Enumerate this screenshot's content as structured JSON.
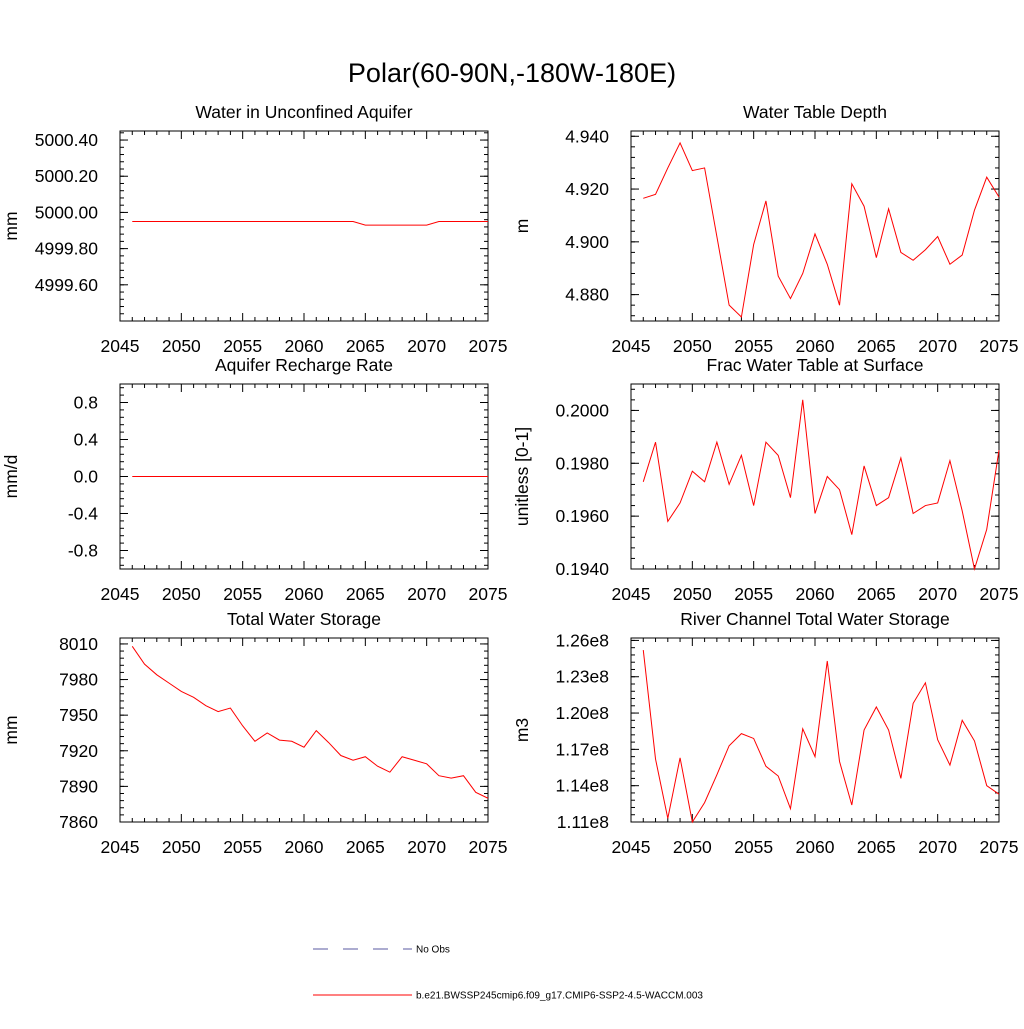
{
  "page": {
    "title": "Polar(60-90N,-180W-180E)"
  },
  "colors": {
    "series": "#ff0000",
    "obs": "#5a5aa0",
    "axis": "#000000"
  },
  "legend": {
    "entries": [
      {
        "label": "No Obs",
        "style": "dashed",
        "color": "#5a5aa0"
      },
      {
        "label": "b.e21.BWSSP245cmip6.f09_g17.CMIP6-SSP2-4.5-WACCM.003",
        "style": "solid",
        "color": "#ff0000"
      }
    ]
  },
  "chart_data": [
    {
      "type": "line",
      "title": "Water in Unconfined Aquifer",
      "xlabel": "",
      "ylabel": "mm",
      "xlim": [
        2045,
        2075
      ],
      "ylim": [
        4999.4,
        5000.45
      ],
      "xticks": [
        2045,
        2050,
        2055,
        2060,
        2065,
        2070,
        2075
      ],
      "xtick_labels": [
        "2045",
        "2050",
        "2055",
        "2060",
        "2065",
        "2070",
        "2075"
      ],
      "yticks": [
        4999.6,
        4999.8,
        5000.0,
        5000.2,
        5000.4
      ],
      "ytick_labels": [
        "4999.60",
        "4999.80",
        "5000.00",
        "5000.20",
        "5000.40"
      ],
      "series": [
        {
          "name": "b.e21.BWSSP245cmip6.f09_g17.CMIP6-SSP2-4.5-WACCM.003",
          "x": [
            2046,
            2047,
            2048,
            2049,
            2050,
            2051,
            2052,
            2053,
            2054,
            2055,
            2056,
            2057,
            2058,
            2059,
            2060,
            2061,
            2062,
            2063,
            2064,
            2065,
            2066,
            2067,
            2068,
            2069,
            2070,
            2071,
            2072,
            2073,
            2074,
            2075
          ],
          "values": [
            4999.95,
            4999.95,
            4999.95,
            4999.95,
            4999.95,
            4999.95,
            4999.95,
            4999.95,
            4999.95,
            4999.95,
            4999.95,
            4999.95,
            4999.95,
            4999.95,
            4999.95,
            4999.95,
            4999.95,
            4999.95,
            4999.95,
            4999.93,
            4999.93,
            4999.93,
            4999.93,
            4999.93,
            4999.93,
            4999.95,
            4999.95,
            4999.95,
            4999.95,
            4999.95
          ]
        }
      ]
    },
    {
      "type": "line",
      "title": "Water Table Depth",
      "xlabel": "",
      "ylabel": "m",
      "xlim": [
        2045,
        2075
      ],
      "ylim": [
        4.87,
        4.942
      ],
      "xticks": [
        2045,
        2050,
        2055,
        2060,
        2065,
        2070,
        2075
      ],
      "xtick_labels": [
        "2045",
        "2050",
        "2055",
        "2060",
        "2065",
        "2070",
        "2075"
      ],
      "yticks": [
        4.88,
        4.9,
        4.92,
        4.94
      ],
      "ytick_labels": [
        "4.880",
        "4.900",
        "4.920",
        "4.940"
      ],
      "series": [
        {
          "name": "b.e21.BWSSP245cmip6.f09_g17.CMIP6-SSP2-4.5-WACCM.003",
          "x": [
            2046,
            2047,
            2048,
            2049,
            2050,
            2051,
            2052,
            2053,
            2054,
            2055,
            2056,
            2057,
            2058,
            2059,
            2060,
            2061,
            2062,
            2063,
            2064,
            2065,
            2066,
            2067,
            2068,
            2069,
            2070,
            2071,
            2072,
            2073,
            2074,
            2075
          ],
          "values": [
            4.9165,
            4.918,
            4.928,
            4.9375,
            4.927,
            4.928,
            4.902,
            4.876,
            4.8715,
            4.899,
            4.9155,
            4.887,
            4.8785,
            4.888,
            4.903,
            4.8915,
            4.876,
            4.922,
            4.9135,
            4.894,
            4.9125,
            4.896,
            4.893,
            4.897,
            4.902,
            4.8915,
            4.895,
            4.912,
            4.9245,
            4.917
          ]
        }
      ]
    },
    {
      "type": "line",
      "title": "Aquifer Recharge Rate",
      "xlabel": "",
      "ylabel": "mm/d",
      "xlim": [
        2045,
        2075
      ],
      "ylim": [
        -1.0,
        1.0
      ],
      "xticks": [
        2045,
        2050,
        2055,
        2060,
        2065,
        2070,
        2075
      ],
      "xtick_labels": [
        "2045",
        "2050",
        "2055",
        "2060",
        "2065",
        "2070",
        "2075"
      ],
      "yticks": [
        -0.8,
        -0.4,
        0.0,
        0.4,
        0.8
      ],
      "ytick_labels": [
        "-0.8",
        "-0.4",
        "0.0",
        "0.4",
        "0.8"
      ],
      "series": [
        {
          "name": "b.e21.BWSSP245cmip6.f09_g17.CMIP6-SSP2-4.5-WACCM.003",
          "x": [
            2046,
            2047,
            2048,
            2049,
            2050,
            2051,
            2052,
            2053,
            2054,
            2055,
            2056,
            2057,
            2058,
            2059,
            2060,
            2061,
            2062,
            2063,
            2064,
            2065,
            2066,
            2067,
            2068,
            2069,
            2070,
            2071,
            2072,
            2073,
            2074,
            2075
          ],
          "values": [
            0,
            0,
            0,
            0,
            0,
            0,
            0,
            0,
            0,
            0,
            0,
            0,
            0,
            0,
            0,
            0,
            0,
            0,
            0,
            0,
            0,
            0,
            0,
            0,
            0,
            0,
            0,
            0,
            0,
            0
          ]
        }
      ]
    },
    {
      "type": "line",
      "title": "Frac Water Table at Surface",
      "xlabel": "",
      "ylabel": "unitless [0-1]",
      "xlim": [
        2045,
        2075
      ],
      "ylim": [
        0.194,
        0.201
      ],
      "xticks": [
        2045,
        2050,
        2055,
        2060,
        2065,
        2070,
        2075
      ],
      "xtick_labels": [
        "2045",
        "2050",
        "2055",
        "2060",
        "2065",
        "2070",
        "2075"
      ],
      "yticks": [
        0.194,
        0.196,
        0.198,
        0.2
      ],
      "ytick_labels": [
        "0.1940",
        "0.1960",
        "0.1980",
        "0.2000"
      ],
      "series": [
        {
          "name": "b.e21.BWSSP245cmip6.f09_g17.CMIP6-SSP2-4.5-WACCM.003",
          "x": [
            2046,
            2047,
            2048,
            2049,
            2050,
            2051,
            2052,
            2053,
            2054,
            2055,
            2056,
            2057,
            2058,
            2059,
            2060,
            2061,
            2062,
            2063,
            2064,
            2065,
            2066,
            2067,
            2068,
            2069,
            2070,
            2071,
            2072,
            2073,
            2074,
            2075
          ],
          "values": [
            0.1973,
            0.1988,
            0.1958,
            0.1965,
            0.1977,
            0.1973,
            0.1988,
            0.1972,
            0.1983,
            0.1964,
            0.1988,
            0.1983,
            0.1967,
            0.2004,
            0.1961,
            0.1975,
            0.197,
            0.1953,
            0.1979,
            0.1964,
            0.1967,
            0.1982,
            0.1961,
            0.1964,
            0.1965,
            0.1981,
            0.1962,
            0.194,
            0.1955,
            0.1985
          ]
        }
      ]
    },
    {
      "type": "line",
      "title": "Total Water Storage",
      "xlabel": "",
      "ylabel": "mm",
      "xlim": [
        2045,
        2075
      ],
      "ylim": [
        7860,
        8015
      ],
      "xticks": [
        2045,
        2050,
        2055,
        2060,
        2065,
        2070,
        2075
      ],
      "xtick_labels": [
        "2045",
        "2050",
        "2055",
        "2060",
        "2065",
        "2070",
        "2075"
      ],
      "yticks": [
        7860,
        7890,
        7920,
        7950,
        7980,
        8010
      ],
      "ytick_labels": [
        "7860",
        "7890",
        "7920",
        "7950",
        "7980",
        "8010"
      ],
      "series": [
        {
          "name": "b.e21.BWSSP245cmip6.f09_g17.CMIP6-SSP2-4.5-WACCM.003",
          "x": [
            2046,
            2047,
            2048,
            2049,
            2050,
            2051,
            2052,
            2053,
            2054,
            2055,
            2056,
            2057,
            2058,
            2059,
            2060,
            2061,
            2062,
            2063,
            2064,
            2065,
            2066,
            2067,
            2068,
            2069,
            2070,
            2071,
            2072,
            2073,
            2074,
            2075
          ],
          "values": [
            8008,
            7993,
            7984,
            7977,
            7970,
            7965,
            7958,
            7953,
            7956,
            7941,
            7928,
            7935,
            7929,
            7928,
            7923,
            7937,
            7927,
            7916,
            7912,
            7915,
            7907,
            7902,
            7915,
            7912,
            7909,
            7899,
            7897,
            7899,
            7885,
            7880
          ]
        }
      ]
    },
    {
      "type": "line",
      "title": "River Channel Total Water Storage",
      "xlabel": "",
      "ylabel": "m3",
      "xlim": [
        2045,
        2075
      ],
      "ylim": [
        111000000.0,
        126200000.0
      ],
      "xticks": [
        2045,
        2050,
        2055,
        2060,
        2065,
        2070,
        2075
      ],
      "xtick_labels": [
        "2045",
        "2050",
        "2055",
        "2060",
        "2065",
        "2070",
        "2075"
      ],
      "yticks": [
        111000000.0,
        114000000.0,
        117000000.0,
        120000000.0,
        123000000.0,
        126000000.0
      ],
      "ytick_labels": [
        "1.11e8",
        "1.14e8",
        "1.17e8",
        "1.20e8",
        "1.23e8",
        "1.26e8"
      ],
      "series": [
        {
          "name": "b.e21.BWSSP245cmip6.f09_g17.CMIP6-SSP2-4.5-WACCM.003",
          "x": [
            2046,
            2047,
            2048,
            2049,
            2050,
            2051,
            2052,
            2053,
            2054,
            2055,
            2056,
            2057,
            2058,
            2059,
            2060,
            2061,
            2062,
            2063,
            2064,
            2065,
            2066,
            2067,
            2068,
            2069,
            2070,
            2071,
            2072,
            2073,
            2074,
            2075
          ],
          "values": [
            125200000.0,
            116200000.0,
            111300000.0,
            116300000.0,
            111000000.0,
            112600000.0,
            114900000.0,
            117300000.0,
            118300000.0,
            117900000.0,
            115600000.0,
            114800000.0,
            112100000.0,
            118700000.0,
            116400000.0,
            124300000.0,
            116000000.0,
            112400000.0,
            118600000.0,
            120500000.0,
            118600000.0,
            114600000.0,
            120800000.0,
            122500000.0,
            117800000.0,
            115700000.0,
            119400000.0,
            117700000.0,
            114000000.0,
            113300000.0
          ]
        }
      ]
    }
  ]
}
